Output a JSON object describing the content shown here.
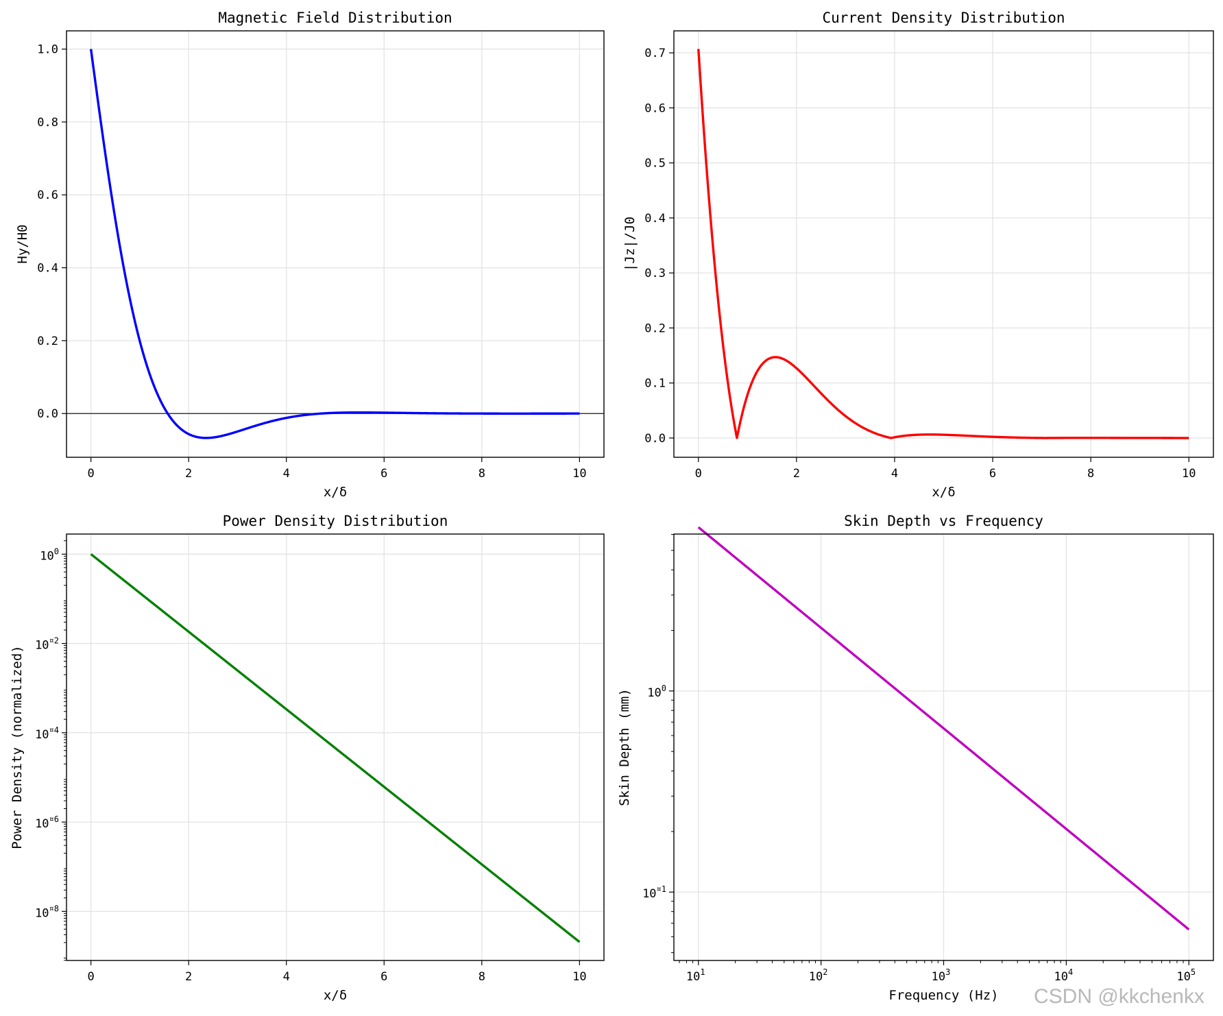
{
  "watermark": "CSDN @kkchenkx",
  "chart_data": [
    {
      "id": "magnetic",
      "type": "line",
      "title": "Magnetic Field Distribution",
      "xlabel": "x/δ",
      "ylabel": "Hy/H0",
      "xscale": "linear",
      "yscale": "linear",
      "xlim": [
        -0.5,
        10.5
      ],
      "ylim": [
        -0.12,
        1.05
      ],
      "xticks": [
        0,
        2,
        4,
        6,
        8,
        10
      ],
      "xtick_labels": [
        "0",
        "2",
        "4",
        "6",
        "8",
        "10"
      ],
      "yticks": [
        0.0,
        0.2,
        0.4,
        0.6,
        0.8,
        1.0
      ],
      "ytick_labels": [
        "0.0",
        "0.2",
        "0.4",
        "0.6",
        "0.8",
        "1.0"
      ],
      "grid": true,
      "zero_line": true,
      "color": "#0000ff",
      "function": "exp(-x)*cos(x)",
      "x_range": [
        0,
        10
      ],
      "series": [
        {
          "name": "Hy/H0",
          "sample_x": [
            0,
            1,
            1.57,
            2.36,
            3,
            4,
            5.5,
            10
          ],
          "sample_y": [
            1.0,
            0.199,
            0.0,
            -0.067,
            -0.049,
            -0.012,
            0.003,
            0.0
          ]
        }
      ]
    },
    {
      "id": "current",
      "type": "line",
      "title": "Current Density Distribution",
      "xlabel": "x/δ",
      "ylabel": "|Jz|/J0",
      "xscale": "linear",
      "yscale": "linear",
      "xlim": [
        -0.5,
        10.5
      ],
      "ylim": [
        -0.035,
        0.74
      ],
      "xticks": [
        0,
        2,
        4,
        6,
        8,
        10
      ],
      "xtick_labels": [
        "0",
        "2",
        "4",
        "6",
        "8",
        "10"
      ],
      "yticks": [
        0.0,
        0.1,
        0.2,
        0.3,
        0.4,
        0.5,
        0.6,
        0.7
      ],
      "ytick_labels": [
        "0.0",
        "0.1",
        "0.2",
        "0.3",
        "0.4",
        "0.5",
        "0.6",
        "0.7"
      ],
      "grid": true,
      "zero_line": false,
      "color": "#ff0000",
      "function": "abs(exp(-x)*cos(x+pi/4))",
      "x_range": [
        0,
        10
      ],
      "series": [
        {
          "name": "|Jz|/J0",
          "sample_x": [
            0,
            0.785,
            1.57,
            3.93,
            4.71,
            10
          ],
          "sample_y": [
            0.707,
            0.0,
            0.147,
            0.0,
            0.006,
            0.0
          ]
        }
      ]
    },
    {
      "id": "power",
      "type": "line",
      "title": "Power Density Distribution",
      "xlabel": "x/δ",
      "ylabel": "Power Density (normalized)",
      "xscale": "linear",
      "yscale": "log",
      "xlim": [
        -0.5,
        10.5
      ],
      "ylim_log10": [
        -9.1,
        0.45
      ],
      "xticks": [
        0,
        2,
        4,
        6,
        8,
        10
      ],
      "xtick_labels": [
        "0",
        "2",
        "4",
        "6",
        "8",
        "10"
      ],
      "yticks_log10": [
        0,
        -2,
        -4,
        -6,
        -8
      ],
      "ytick_base": "10",
      "ytick_exponents": [
        "0",
        "¤2",
        "¤4",
        "¤6",
        "¤8"
      ],
      "grid": true,
      "zero_line": false,
      "color": "#008000",
      "function": "exp(-2*x)",
      "x_range": [
        0,
        10
      ],
      "series": [
        {
          "name": "Power Density",
          "x": [
            0,
            10
          ],
          "y": [
            1.0,
            2.06e-09
          ]
        }
      ]
    },
    {
      "id": "skin",
      "type": "line",
      "title": "Skin Depth vs Frequency",
      "xlabel": "Frequency (Hz)",
      "ylabel": "Skin Depth (mm)",
      "xscale": "log",
      "yscale": "log",
      "xlim_log10": [
        0.8,
        5.2
      ],
      "ylim_log10": [
        -1.34,
        0.78
      ],
      "xticks_log10": [
        1,
        2,
        3,
        4,
        5
      ],
      "xtick_base": "10",
      "xtick_exponents": [
        "1",
        "2",
        "3",
        "4",
        "5"
      ],
      "yticks_log10": [
        0,
        -1
      ],
      "ytick_base": "10",
      "ytick_exponents": [
        "0",
        "¤1"
      ],
      "grid": true,
      "zero_line": false,
      "color": "#bf00bf",
      "function": "20.6/sqrt(f)",
      "series": [
        {
          "name": "Skin Depth",
          "x": [
            10,
            100000
          ],
          "y": [
            6.5,
            0.065
          ]
        }
      ]
    }
  ]
}
